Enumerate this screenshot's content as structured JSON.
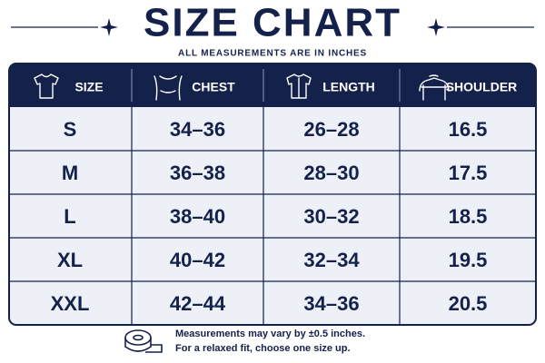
{
  "header": {
    "title": "SIZE CHART",
    "subtitle": "ALL MEASUREMENTS ARE IN INCHES"
  },
  "table": {
    "columns": [
      "SIZE",
      "CHEST",
      "LENGTH",
      "SHOULDER"
    ],
    "rows": [
      [
        "S",
        "34–36",
        "26–28",
        "16.5"
      ],
      [
        "M",
        "36–38",
        "28–30",
        "17.5"
      ],
      [
        "L",
        "38–40",
        "30–32",
        "18.5"
      ],
      [
        "XL",
        "40–42",
        "32–34",
        "19.5"
      ],
      [
        "XXL",
        "42–44",
        "34–36",
        "20.5"
      ]
    ]
  },
  "footer": {
    "lines": [
      "Measurements may vary by ±0.5 inches.",
      "For a relaxed fit, choose one size up."
    ]
  }
}
